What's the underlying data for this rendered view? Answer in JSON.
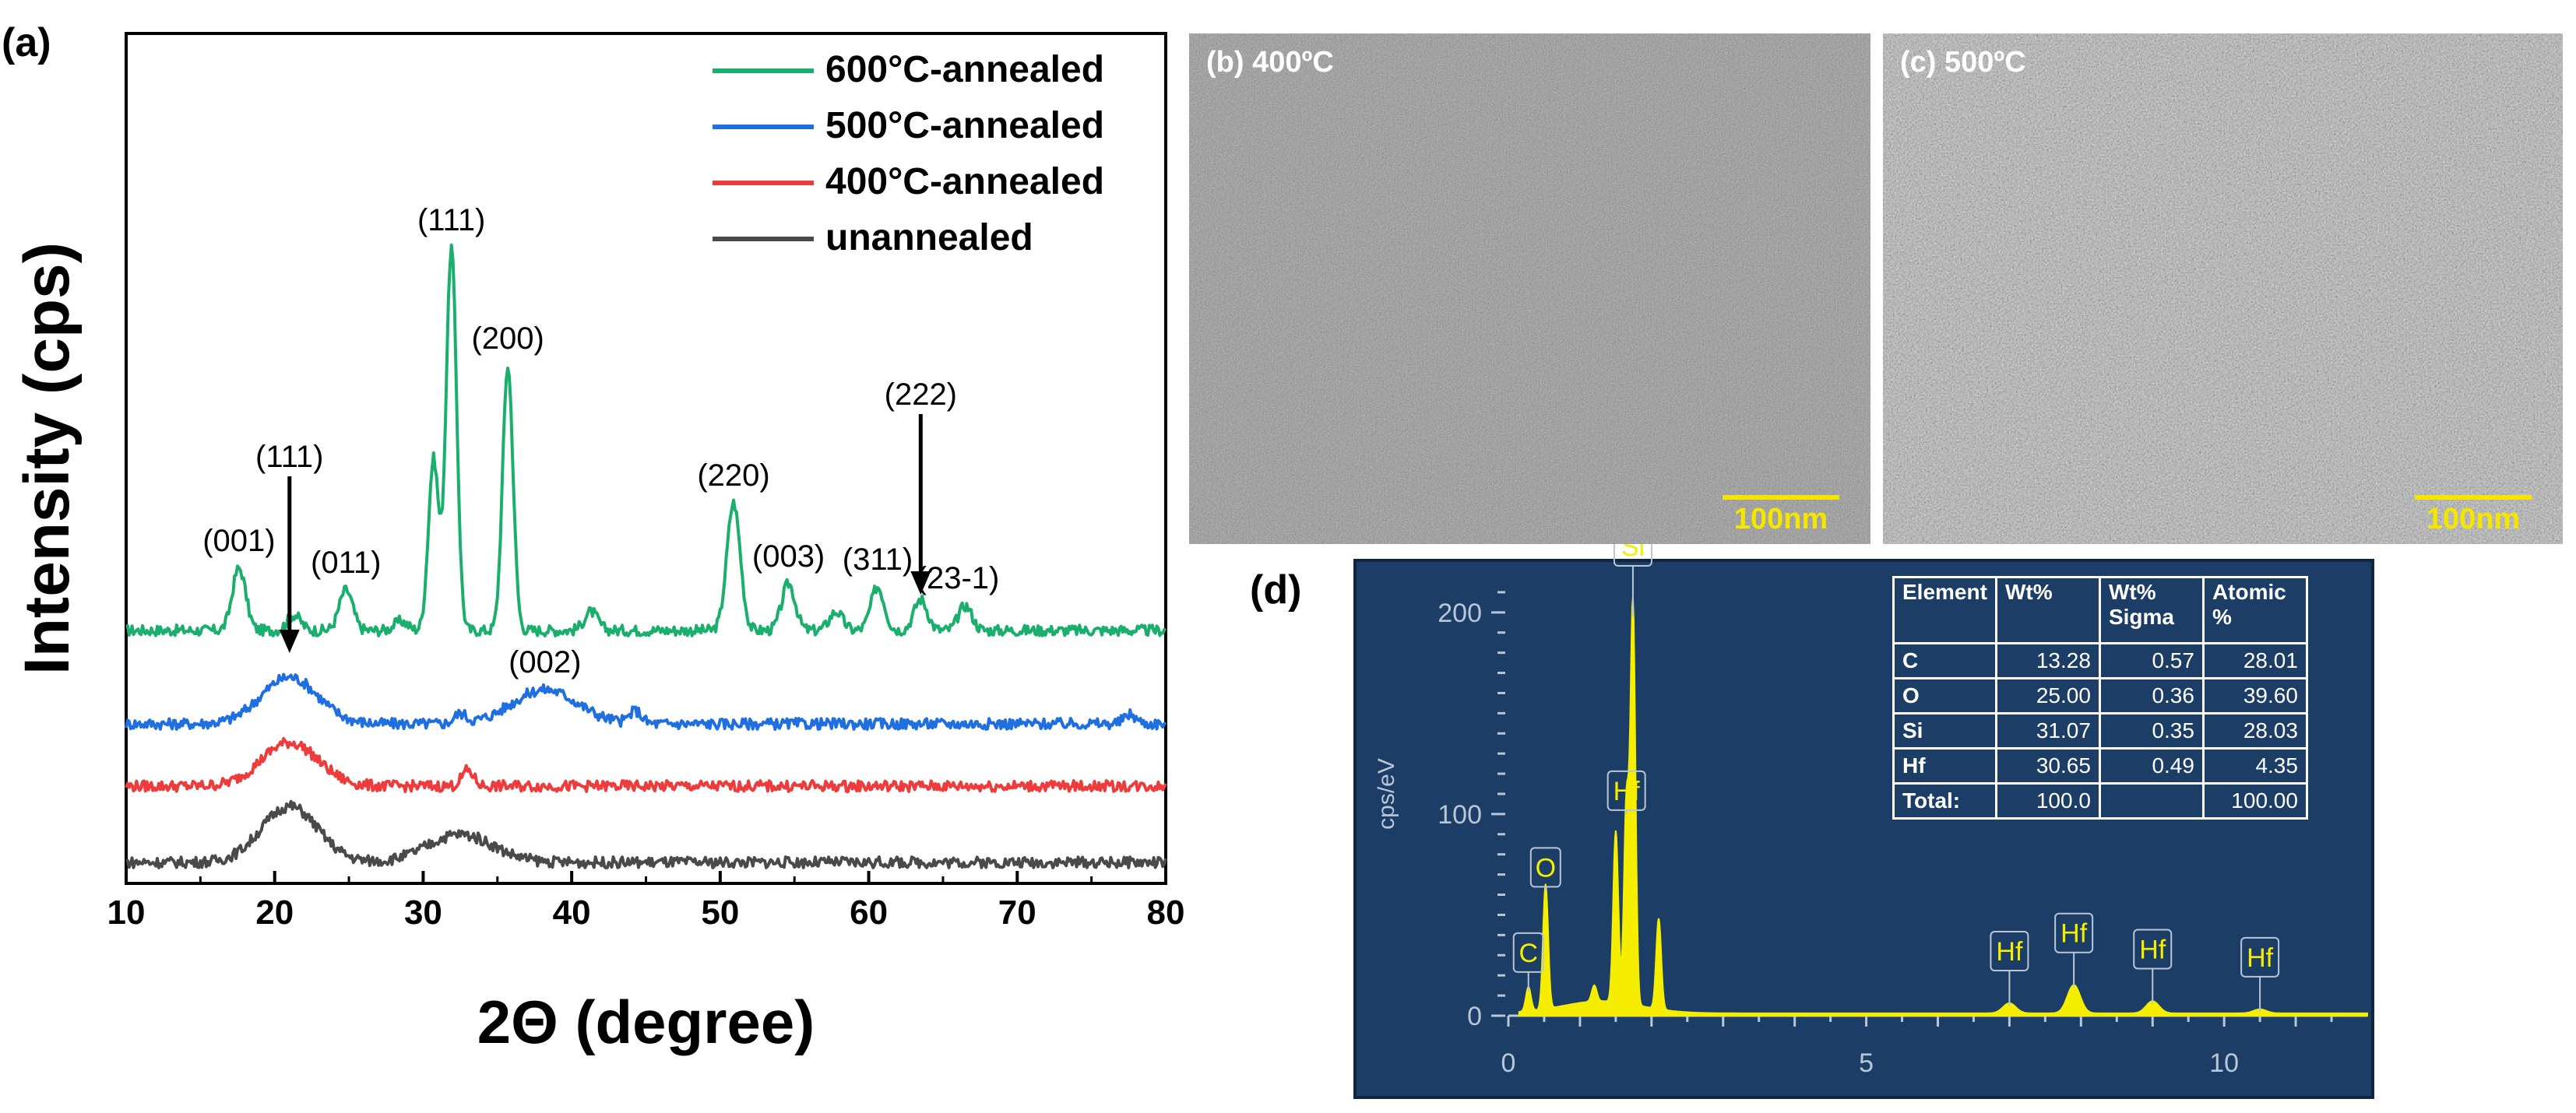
{
  "panel_a": {
    "label": "(a)",
    "chart_data": {
      "type": "line",
      "xlabel": "2Θ (degree)",
      "ylabel": "Intensity (cps)",
      "xlim": [
        10,
        80
      ],
      "xticks": [
        "10",
        "20",
        "30",
        "40",
        "50",
        "60",
        "70",
        "80"
      ],
      "legend": {
        "placement": "top-right",
        "entries": [
          "600°C-annealed",
          "500°C-annealed",
          "400°C-annealed",
          "unannealed"
        ]
      },
      "series": [
        {
          "name": "600°C-annealed",
          "color": "#1aaf6c",
          "baseline": 0.0,
          "peaks": [
            [
              17.6,
              2.0
            ],
            [
              21.3,
              0.5
            ],
            [
              24.8,
              1.3
            ],
            [
              28.5,
              0.3
            ],
            [
              30.7,
              5.5
            ],
            [
              31.9,
              12.3
            ],
            [
              35.7,
              8.5
            ],
            [
              41.3,
              0.6
            ],
            [
              50.9,
              4.1
            ],
            [
              54.6,
              1.5
            ],
            [
              57.8,
              0.6
            ],
            [
              60.6,
              1.4
            ],
            [
              63.5,
              1.0
            ],
            [
              66.5,
              0.8
            ]
          ]
        },
        {
          "name": "500°C-annealed",
          "color": "#1f6fe0",
          "baseline": -2.3,
          "peaks": [
            [
              21.0,
              1.5
            ],
            [
              32.5,
              0.3
            ],
            [
              38.2,
              1.1
            ],
            [
              44.3,
              0.4
            ],
            [
              77.6,
              0.3
            ]
          ]
        },
        {
          "name": "400°C-annealed",
          "color": "#ee3b3b",
          "baseline": -4.0,
          "peaks": [
            [
              21.0,
              1.4
            ],
            [
              33.0,
              0.5
            ]
          ]
        },
        {
          "name": "unannealed",
          "color": "#4a4a4a",
          "baseline": -6.0,
          "peaks": [
            [
              21.0,
              1.8
            ],
            [
              32.5,
              0.9
            ]
          ]
        }
      ],
      "peak_labels": [
        {
          "text": "(001)",
          "x": 17.6,
          "series": "600°C-annealed"
        },
        {
          "text": "(111)",
          "x": 21.0,
          "series": "500°C-annealed",
          "arrow": true
        },
        {
          "text": "(011)",
          "x": 24.8,
          "series": "600°C-annealed"
        },
        {
          "text": "(111)",
          "x": 31.9,
          "series": "600°C-annealed"
        },
        {
          "text": "(200)",
          "x": 35.7,
          "series": "600°C-annealed"
        },
        {
          "text": "(002)",
          "x": 38.2,
          "series": "500°C-annealed"
        },
        {
          "text": "(220)",
          "x": 50.9,
          "series": "600°C-annealed"
        },
        {
          "text": "(003)",
          "x": 54.6,
          "series": "600°C-annealed"
        },
        {
          "text": "(311)",
          "x": 60.6,
          "series": "600°C-annealed"
        },
        {
          "text": "(222)",
          "x": 63.5,
          "series": "600°C-annealed",
          "arrow": true
        },
        {
          "text": "(23-1)",
          "x": 66.0,
          "series": "600°C-annealed"
        }
      ]
    }
  },
  "panel_b": {
    "label": "(b) 400ºC",
    "scale_bar": "100nm"
  },
  "panel_c": {
    "label": "(c) 500ºC",
    "scale_bar": "100nm"
  },
  "panel_d": {
    "label": "(d)",
    "chart_data": {
      "type": "line",
      "ylabel": "cps/eV",
      "xlim": [
        0,
        12
      ],
      "ylim": [
        0,
        220
      ],
      "xticks": [
        "0",
        "5",
        "10"
      ],
      "yticks": [
        "0",
        "100",
        "200"
      ],
      "series": [
        {
          "name": "EDS spectrum",
          "color": "#f5ee00",
          "peaks": [
            [
              0.28,
              12
            ],
            [
              0.52,
              62
            ],
            [
              1.2,
              8
            ],
            [
              1.5,
              85
            ],
            [
              1.65,
              100
            ],
            [
              1.74,
              198
            ],
            [
              2.1,
              45
            ],
            [
              7.0,
              5
            ],
            [
              7.9,
              14
            ],
            [
              9.0,
              6
            ],
            [
              10.5,
              2
            ]
          ]
        }
      ],
      "element_markers": [
        {
          "text": "C",
          "x": 0.28,
          "y": 12
        },
        {
          "text": "O",
          "x": 0.52,
          "y": 62
        },
        {
          "text": "Si",
          "x": 1.74,
          "y": 198
        },
        {
          "text": "Hf",
          "x": 1.65,
          "y": 100
        },
        {
          "text": "Hf",
          "x": 7.0,
          "y": 5
        },
        {
          "text": "Hf",
          "x": 7.9,
          "y": 14
        },
        {
          "text": "Hf",
          "x": 9.0,
          "y": 6
        },
        {
          "text": "Hf",
          "x": 10.5,
          "y": 2
        }
      ]
    },
    "table": {
      "headers": [
        [
          "Element"
        ],
        [
          "Wt%"
        ],
        [
          "Wt%",
          "Sigma"
        ],
        [
          "Atomic",
          "%"
        ]
      ],
      "rows": [
        {
          "element": "C",
          "wt": "13.28",
          "sigma": "0.57",
          "atomic": "28.01"
        },
        {
          "element": "O",
          "wt": "25.00",
          "sigma": "0.36",
          "atomic": "39.60"
        },
        {
          "element": "Si",
          "wt": "31.07",
          "sigma": "0.35",
          "atomic": "28.03"
        },
        {
          "element": "Hf",
          "wt": "30.65",
          "sigma": "0.49",
          "atomic": "4.35"
        },
        {
          "element": "Total:",
          "wt": "100.0",
          "sigma": "",
          "atomic": "100.00"
        }
      ]
    }
  },
  "colors": {
    "eds_bg": "#1b3d66",
    "eds_spectrum": "#f5ee00",
    "scale_bar": "#f5e600"
  }
}
